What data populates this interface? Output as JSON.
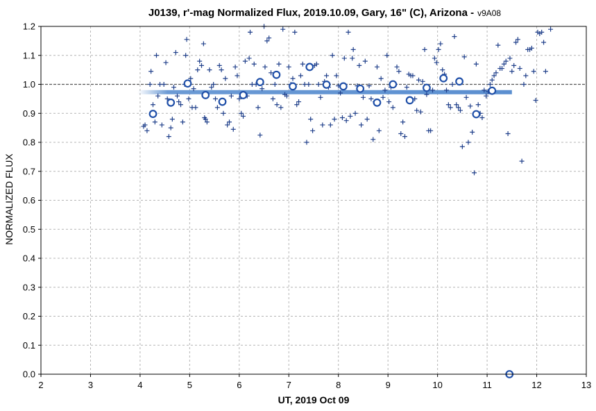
{
  "chart_data": {
    "type": "scatter",
    "title": "J0139, r'-mag Normalized Flux, 2019.10.09, Gary, 16\" (C), Arizona -",
    "title_suffix": "v9A08",
    "xlabel": "UT, 2019 Oct 09",
    "ylabel": "NORMALIZED FLUX",
    "xlim": [
      2,
      13
    ],
    "ylim": [
      0,
      1.2
    ],
    "x_ticks": [
      "2",
      "3",
      "4",
      "5",
      "6",
      "7",
      "8",
      "9",
      "10",
      "11",
      "12",
      "13"
    ],
    "y_ticks": [
      "0.0",
      "0.1",
      "0.2",
      "0.3",
      "0.4",
      "0.5",
      "0.6",
      "0.7",
      "0.8",
      "0.9",
      "1.0",
      "1.1",
      "1.2"
    ],
    "grid": true,
    "reference_line": 1.0,
    "colors": {
      "points": "#1f3f8a",
      "averages": "#1f4fa8",
      "band": "#5b8fd0",
      "grid": "#b4b4b4"
    },
    "band": {
      "x": [
        3.95,
        11.5
      ],
      "y": 0.973
    },
    "series": [
      {
        "marker": "plus",
        "points": [
          [
            4.07,
            0.855
          ],
          [
            4.1,
            0.86
          ],
          [
            4.14,
            0.84
          ],
          [
            4.2,
            1.0
          ],
          [
            4.22,
            1.045
          ],
          [
            4.26,
            0.93
          ],
          [
            4.3,
            0.87
          ],
          [
            4.33,
            1.1
          ],
          [
            4.36,
            0.96
          ],
          [
            4.4,
            1.0
          ],
          [
            4.44,
            0.86
          ],
          [
            4.48,
            1.0
          ],
          [
            4.52,
            1.075
          ],
          [
            4.55,
            0.95
          ],
          [
            4.58,
            0.82
          ],
          [
            4.62,
            0.85
          ],
          [
            4.65,
            0.88
          ],
          [
            4.68,
            0.99
          ],
          [
            4.72,
            1.11
          ],
          [
            4.75,
            0.96
          ],
          [
            4.78,
            0.94
          ],
          [
            4.82,
            0.93
          ],
          [
            4.86,
            0.87
          ],
          [
            4.9,
            1.0
          ],
          [
            4.92,
            1.1
          ],
          [
            4.94,
            1.155
          ],
          [
            4.98,
            0.95
          ],
          [
            5.02,
            1.02
          ],
          [
            5.05,
            0.92
          ],
          [
            5.08,
            0.985
          ],
          [
            5.12,
            0.92
          ],
          [
            5.16,
            1.05
          ],
          [
            5.2,
            1.08
          ],
          [
            5.24,
            1.065
          ],
          [
            5.28,
            1.14
          ],
          [
            5.3,
            0.885
          ],
          [
            5.32,
            0.88
          ],
          [
            5.35,
            0.87
          ],
          [
            5.4,
            1.05
          ],
          [
            5.44,
            0.99
          ],
          [
            5.48,
            1.0
          ],
          [
            5.52,
            0.95
          ],
          [
            5.56,
            0.92
          ],
          [
            5.6,
            1.065
          ],
          [
            5.64,
            1.05
          ],
          [
            5.68,
            0.9
          ],
          [
            5.72,
            1.02
          ],
          [
            5.76,
            0.86
          ],
          [
            5.8,
            0.87
          ],
          [
            5.84,
            0.96
          ],
          [
            5.88,
            0.845
          ],
          [
            5.92,
            1.06
          ],
          [
            5.96,
            1.03
          ],
          [
            6.0,
            0.95
          ],
          [
            6.04,
            0.9
          ],
          [
            6.08,
            0.89
          ],
          [
            6.12,
            1.08
          ],
          [
            6.16,
            0.96
          ],
          [
            6.2,
            1.09
          ],
          [
            6.22,
            1.18
          ],
          [
            6.26,
            1.0
          ],
          [
            6.3,
            1.07
          ],
          [
            6.34,
            1.0
          ],
          [
            6.38,
            0.92
          ],
          [
            6.42,
            0.825
          ],
          [
            6.46,
            0.985
          ],
          [
            6.5,
            1.2
          ],
          [
            6.52,
            1.06
          ],
          [
            6.56,
            1.15
          ],
          [
            6.6,
            1.16
          ],
          [
            6.64,
            1.04
          ],
          [
            6.68,
            0.95
          ],
          [
            6.72,
            1.0
          ],
          [
            6.76,
            0.93
          ],
          [
            6.8,
            1.07
          ],
          [
            6.84,
            0.92
          ],
          [
            6.88,
            1.19
          ],
          [
            6.92,
            0.965
          ],
          [
            6.96,
            0.96
          ],
          [
            7.0,
            1.06
          ],
          [
            7.04,
            1.0
          ],
          [
            7.08,
            1.02
          ],
          [
            7.12,
            1.18
          ],
          [
            7.16,
            0.93
          ],
          [
            7.2,
            0.94
          ],
          [
            7.24,
            1.03
          ],
          [
            7.28,
            1.07
          ],
          [
            7.32,
            1.0
          ],
          [
            7.36,
            0.8
          ],
          [
            7.4,
            1.0
          ],
          [
            7.44,
            0.88
          ],
          [
            7.48,
            0.84
          ],
          [
            7.52,
            1.065
          ],
          [
            7.56,
            1.07
          ],
          [
            7.6,
            1.0
          ],
          [
            7.64,
            0.955
          ],
          [
            7.68,
            0.86
          ],
          [
            7.72,
            1.01
          ],
          [
            7.76,
            1.03
          ],
          [
            7.8,
            0.99
          ],
          [
            7.84,
            0.86
          ],
          [
            7.88,
            1.1
          ],
          [
            7.92,
            0.88
          ],
          [
            7.96,
            1.03
          ],
          [
            8.0,
            0.995
          ],
          [
            8.04,
            0.97
          ],
          [
            8.08,
            0.885
          ],
          [
            8.12,
            1.09
          ],
          [
            8.16,
            0.875
          ],
          [
            8.2,
            1.18
          ],
          [
            8.24,
            0.89
          ],
          [
            8.28,
            1.09
          ],
          [
            8.3,
            1.12
          ],
          [
            8.34,
            0.9
          ],
          [
            8.38,
            0.995
          ],
          [
            8.42,
            1.065
          ],
          [
            8.46,
            0.86
          ],
          [
            8.5,
            0.955
          ],
          [
            8.54,
            1.08
          ],
          [
            8.58,
            0.88
          ],
          [
            8.62,
            0.995
          ],
          [
            8.66,
            0.95
          ],
          [
            8.7,
            0.81
          ],
          [
            8.74,
            0.94
          ],
          [
            8.78,
            1.06
          ],
          [
            8.82,
            0.84
          ],
          [
            8.86,
            1.02
          ],
          [
            8.9,
            0.955
          ],
          [
            8.94,
            0.98
          ],
          [
            8.98,
            1.1
          ],
          [
            9.02,
            0.94
          ],
          [
            9.06,
            0.99
          ],
          [
            9.1,
            0.92
          ],
          [
            9.14,
            1.0
          ],
          [
            9.18,
            1.06
          ],
          [
            9.22,
            1.045
          ],
          [
            9.26,
            0.83
          ],
          [
            9.3,
            0.87
          ],
          [
            9.34,
            0.82
          ],
          [
            9.38,
            0.99
          ],
          [
            9.42,
            1.035
          ],
          [
            9.46,
            1.03
          ],
          [
            9.5,
            1.03
          ],
          [
            9.54,
            0.95
          ],
          [
            9.58,
            0.91
          ],
          [
            9.62,
            1.015
          ],
          [
            9.66,
            0.905
          ],
          [
            9.7,
            1.01
          ],
          [
            9.74,
            1.12
          ],
          [
            9.78,
            0.965
          ],
          [
            9.82,
            0.84
          ],
          [
            9.86,
            0.84
          ],
          [
            9.9,
            0.98
          ],
          [
            9.94,
            1.09
          ],
          [
            9.98,
            1.075
          ],
          [
            10.02,
            1.12
          ],
          [
            10.06,
            1.14
          ],
          [
            10.1,
            1.05
          ],
          [
            10.14,
            1.035
          ],
          [
            10.18,
            0.98
          ],
          [
            10.22,
            0.93
          ],
          [
            10.26,
            0.92
          ],
          [
            10.3,
            1.0
          ],
          [
            10.34,
            1.165
          ],
          [
            10.38,
            0.93
          ],
          [
            10.42,
            0.92
          ],
          [
            10.46,
            0.91
          ],
          [
            10.5,
            0.785
          ],
          [
            10.54,
            1.095
          ],
          [
            10.58,
            0.955
          ],
          [
            10.62,
            0.8
          ],
          [
            10.66,
            0.925
          ],
          [
            10.7,
            0.835
          ],
          [
            10.74,
            0.695
          ],
          [
            10.78,
            1.07
          ],
          [
            10.82,
            0.93
          ],
          [
            10.86,
            0.9
          ],
          [
            10.9,
            0.885
          ],
          [
            10.94,
            0.98
          ],
          [
            10.98,
            0.96
          ],
          [
            11.02,
            0.975
          ],
          [
            11.06,
            1.0
          ],
          [
            11.1,
            1.015
          ],
          [
            11.14,
            1.03
          ],
          [
            11.18,
            1.04
          ],
          [
            11.22,
            1.135
          ],
          [
            11.26,
            1.055
          ],
          [
            11.3,
            1.055
          ],
          [
            11.34,
            1.07
          ],
          [
            11.38,
            1.08
          ],
          [
            11.42,
            0.83
          ],
          [
            11.46,
            1.09
          ],
          [
            11.5,
            1.045
          ],
          [
            11.54,
            1.065
          ],
          [
            11.58,
            1.145
          ],
          [
            11.62,
            1.155
          ],
          [
            11.66,
            1.055
          ],
          [
            11.7,
            0.735
          ],
          [
            11.74,
            1.0
          ],
          [
            11.78,
            1.03
          ],
          [
            11.82,
            1.12
          ],
          [
            11.86,
            1.12
          ],
          [
            11.9,
            1.125
          ],
          [
            11.94,
            1.045
          ],
          [
            11.98,
            0.945
          ],
          [
            12.02,
            1.18
          ],
          [
            12.06,
            1.175
          ],
          [
            12.1,
            1.18
          ],
          [
            12.14,
            1.145
          ],
          [
            12.18,
            1.045
          ],
          [
            12.28,
            1.19
          ]
        ]
      },
      {
        "marker": "circle",
        "points": [
          [
            4.26,
            0.898
          ],
          [
            4.62,
            0.937
          ],
          [
            4.96,
            1.003
          ],
          [
            5.32,
            0.963
          ],
          [
            5.66,
            0.94
          ],
          [
            6.08,
            0.963
          ],
          [
            6.42,
            1.008
          ],
          [
            6.75,
            1.033
          ],
          [
            7.08,
            0.993
          ],
          [
            7.42,
            1.06
          ],
          [
            7.76,
            0.999
          ],
          [
            8.1,
            0.993
          ],
          [
            8.44,
            0.985
          ],
          [
            8.78,
            0.937
          ],
          [
            9.1,
            1.0
          ],
          [
            9.44,
            0.945
          ],
          [
            9.78,
            0.988
          ],
          [
            10.12,
            1.021
          ],
          [
            10.44,
            1.01
          ],
          [
            10.78,
            0.897
          ],
          [
            11.1,
            0.978
          ],
          [
            11.45,
            0.0
          ]
        ]
      }
    ]
  }
}
